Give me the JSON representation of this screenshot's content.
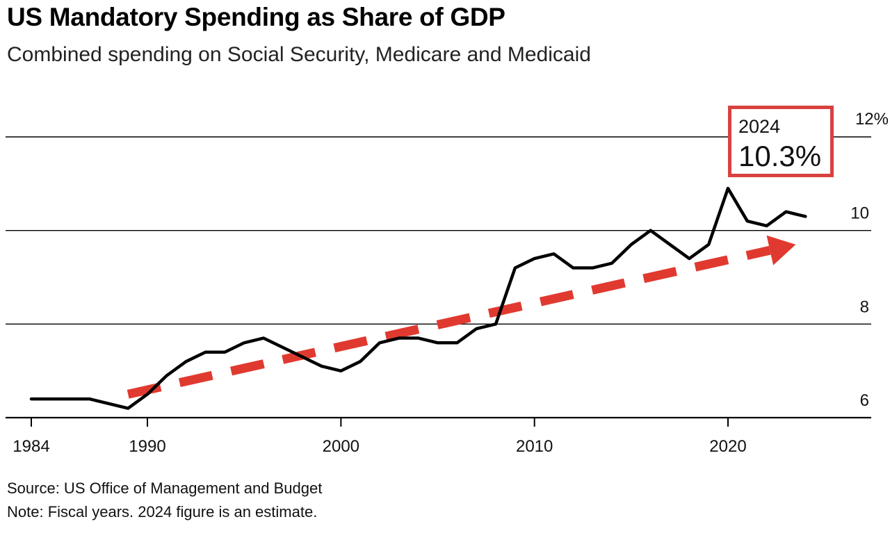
{
  "title": "US Mandatory Spending as Share of GDP",
  "subtitle": "Combined spending on Social Security, Medicare and Medicaid",
  "source": "Source: US Office of Management and Budget",
  "note": "Note: Fiscal years. 2024 figure is an estimate.",
  "callout": {
    "year": "2024",
    "value": "10.3%"
  },
  "colors": {
    "line": "#000000",
    "trend": "#e03a30",
    "callout_border": "#d9413f",
    "grid": "#000000"
  },
  "chart_data": {
    "type": "line",
    "title": "US Mandatory Spending as Share of GDP",
    "subtitle": "Combined spending on Social Security, Medicare and Medicaid",
    "x_ticks": [
      1984,
      1990,
      2000,
      2010,
      2020
    ],
    "x_tick_labels": [
      "1984",
      "1990",
      "2000",
      "2010",
      "2020"
    ],
    "y_ticks": [
      6,
      8,
      10,
      12
    ],
    "y_tick_labels": [
      "6",
      "8",
      "10",
      "12%"
    ],
    "xlim": [
      1983,
      2027
    ],
    "ylim": [
      6,
      12
    ],
    "grid": "horizontal",
    "series": [
      {
        "x": [
          1984,
          1985,
          1986,
          1987,
          1988,
          1989,
          1990,
          1991,
          1992,
          1993,
          1994,
          1995,
          1996,
          1997,
          1998,
          1999,
          2000,
          2001,
          2002,
          2003,
          2004,
          2005,
          2006,
          2007,
          2008,
          2009,
          2010,
          2011,
          2012,
          2013,
          2014,
          2015,
          2016,
          2017,
          2018,
          2019,
          2020,
          2021,
          2022,
          2023,
          2024
        ],
        "y": [
          6.4,
          6.4,
          6.4,
          6.4,
          6.3,
          6.2,
          6.5,
          6.9,
          7.2,
          7.4,
          7.4,
          7.6,
          7.7,
          7.5,
          7.3,
          7.1,
          7.0,
          7.2,
          7.6,
          7.7,
          7.7,
          7.6,
          7.6,
          7.9,
          8.0,
          9.2,
          9.4,
          9.5,
          9.2,
          9.2,
          9.3,
          9.7,
          10.0,
          9.7,
          9.4,
          9.7,
          10.9,
          10.2,
          10.1,
          10.4,
          10.3
        ]
      }
    ],
    "trend_arrow": {
      "x": [
        1989,
        2023.5
      ],
      "y": [
        6.5,
        9.7
      ],
      "style": "dashed",
      "color": "#e03a30"
    },
    "annotation": {
      "year": "2024",
      "value": "10.3%"
    }
  }
}
